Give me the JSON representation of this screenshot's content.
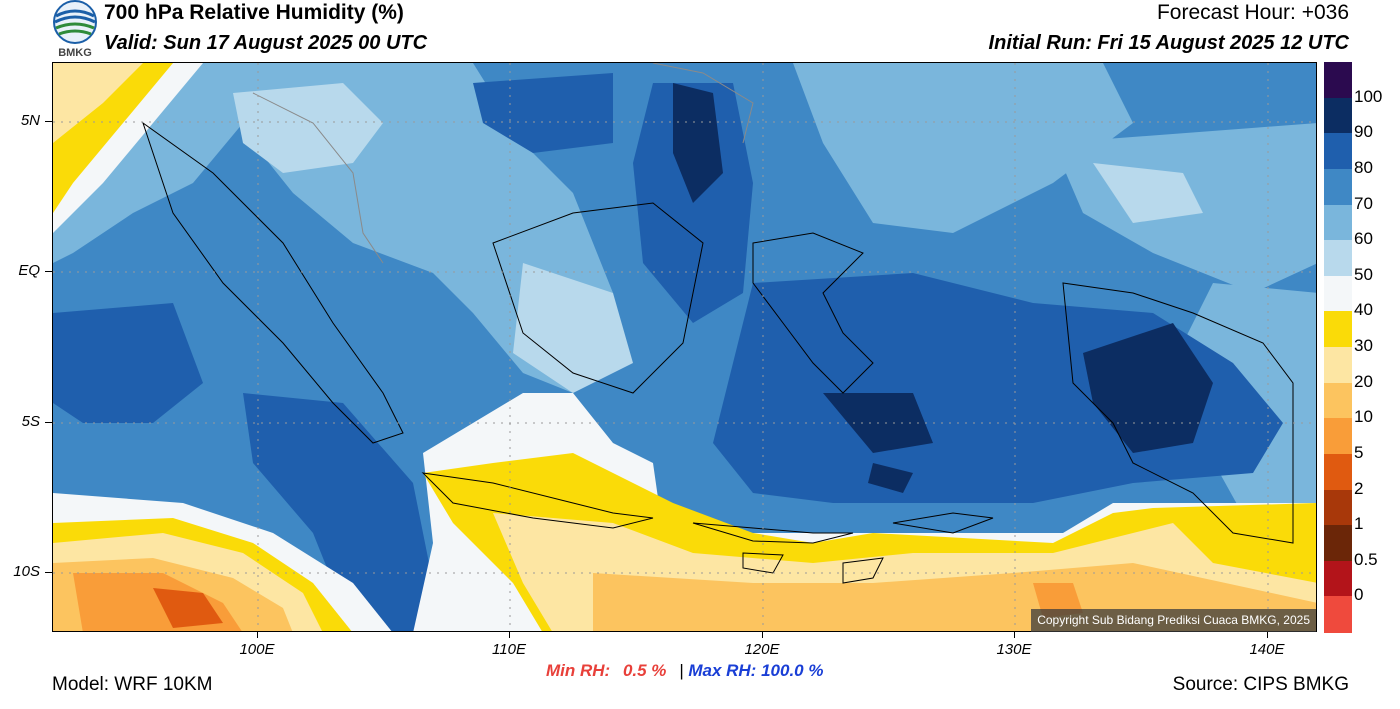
{
  "header": {
    "title": "700 hPa Relative Humidity (%)",
    "valid": "Valid: Sun 17 August 2025 00 UTC",
    "forecast_hour": "Forecast Hour: +036",
    "initial_run": "Initial Run: Fri 15 August 2025 12 UTC",
    "logo_text": "BMKG"
  },
  "map": {
    "lat_labels": [
      "5N",
      "EQ",
      "5S",
      "10S"
    ],
    "lon_labels": [
      "100E",
      "110E",
      "120E",
      "130E",
      "140E"
    ],
    "copyright": "Copyright Sub Bidang Prediksi Cuaca BMKG, 2025"
  },
  "colorbar": {
    "labels": [
      "100",
      "90",
      "80",
      "70",
      "60",
      "50",
      "40",
      "30",
      "20",
      "10",
      "5",
      "2",
      "1",
      "0.5",
      "0"
    ],
    "colors": [
      "#2b0a4f",
      "#0c2d62",
      "#1f5fad",
      "#3f88c5",
      "#7ab6dc",
      "#b8d9ec",
      "#f4f7f9",
      "#fadb08",
      "#fde6a3",
      "#fcc45f",
      "#f99d39",
      "#e05a10",
      "#a8380a",
      "#6b2608",
      "#b3141a",
      "#ef4a3d"
    ]
  },
  "footer": {
    "min_rh_label": "Min RH:",
    "min_rh_value": "0.5 %",
    "separator": "|",
    "max_rh_label": "Max RH:",
    "max_rh_value": "100.0 %",
    "model": "Model: WRF 10KM",
    "source": "Source: CIPS BMKG"
  }
}
